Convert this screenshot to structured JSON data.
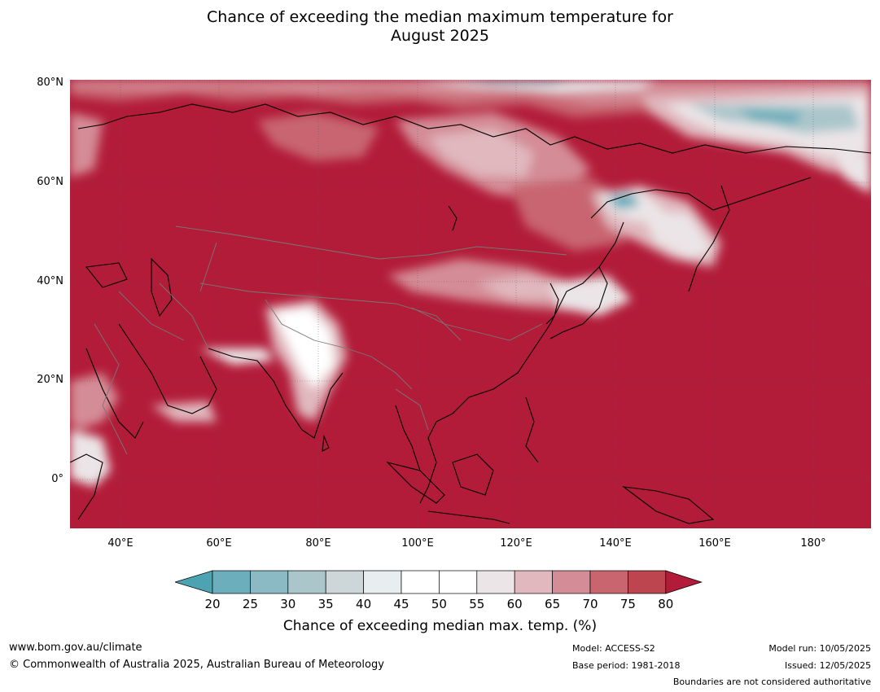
{
  "title_line1": "Chance of exceeding the median maximum temperature for",
  "title_line2": "August 2025",
  "map": {
    "type": "map",
    "lat_labels": [
      "80°N",
      "60°N",
      "40°N",
      "20°N",
      "0°"
    ],
    "lon_labels": [
      "40°E",
      "60°E",
      "80°E",
      "100°E",
      "120°E",
      "140°E",
      "160°E",
      "180°"
    ],
    "lon_range": [
      30,
      191
    ],
    "lat_range": [
      -10,
      80
    ],
    "dominant_color": "#b21c39",
    "region": "Asia"
  },
  "colorbar": {
    "ticks": [
      "20",
      "25",
      "30",
      "35",
      "40",
      "45",
      "50",
      "55",
      "60",
      "65",
      "70",
      "75",
      "80"
    ],
    "colors": [
      "#4ea3b3",
      "#6caebb",
      "#8bbac4",
      "#aac6cb",
      "#cdd7da",
      "#e8eeef",
      "#ffffff",
      "#ffffff",
      "#ebe5e7",
      "#e0b8be",
      "#d48c96",
      "#c8656f",
      "#bd4550",
      "#b21c39"
    ],
    "label": "Chance of exceeding median max. temp. (%)"
  },
  "footer": {
    "website": "www.bom.gov.au/climate",
    "copyright": "© Commonwealth of Australia 2025, Australian Bureau of Meteorology",
    "model": "Model: ACCESS-S2",
    "base_period": "Base period: 1981-2018",
    "model_run": "Model run: 10/05/2025",
    "issued": "Issued: 12/05/2025",
    "disclaimer": "Boundaries are not considered authoritative"
  }
}
